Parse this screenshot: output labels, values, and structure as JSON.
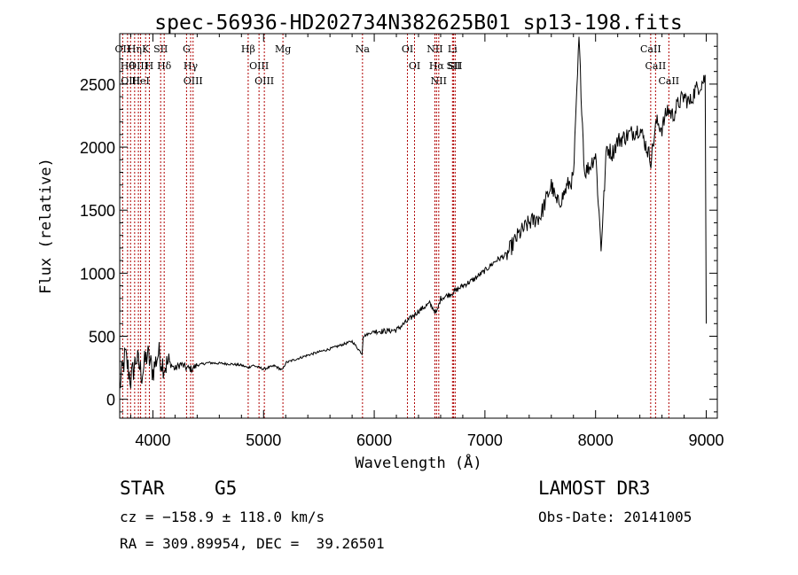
{
  "chart_data": {
    "type": "line",
    "title": "spec-56936-HD202734N382625B01_sp13-198.fits",
    "xlabel": "Wavelength (Å)",
    "ylabel": "Flux (relative)",
    "xlim": [
      3700,
      9100
    ],
    "ylim": [
      -150,
      2900
    ],
    "xticks": [
      4000,
      5000,
      6000,
      7000,
      8000,
      9000
    ],
    "yticks": [
      0,
      500,
      1000,
      1500,
      2000,
      2500
    ],
    "series": [
      {
        "name": "spectrum",
        "x": [
          3700,
          3750,
          3800,
          3850,
          3900,
          3950,
          4000,
          4050,
          4100,
          4150,
          4200,
          4250,
          4300,
          4350,
          4400,
          4500,
          4600,
          4700,
          4800,
          4860,
          4900,
          5000,
          5100,
          5170,
          5200,
          5300,
          5400,
          5500,
          5600,
          5700,
          5800,
          5890,
          5900,
          6000,
          6100,
          6200,
          6300,
          6400,
          6500,
          6563,
          6600,
          6700,
          6800,
          6900,
          7000,
          7100,
          7200,
          7300,
          7400,
          7500,
          7600,
          7650,
          7700,
          7750,
          7800,
          7850,
          7900,
          7950,
          8000,
          8050,
          8100,
          8150,
          8200,
          8300,
          8400,
          8500,
          8550,
          8600,
          8650,
          8700,
          8750,
          8800,
          8850,
          8900,
          8950,
          8990,
          9000
        ],
        "values": [
          100,
          350,
          150,
          330,
          200,
          360,
          220,
          370,
          260,
          290,
          240,
          280,
          250,
          240,
          270,
          290,
          285,
          280,
          270,
          250,
          270,
          240,
          265,
          230,
          290,
          320,
          350,
          375,
          400,
          430,
          460,
          360,
          500,
          540,
          540,
          550,
          620,
          700,
          760,
          680,
          800,
          840,
          900,
          950,
          1020,
          1100,
          1150,
          1300,
          1400,
          1450,
          1700,
          1550,
          1600,
          1700,
          1750,
          2850,
          1800,
          1850,
          1950,
          1200,
          2000,
          1950,
          2050,
          2100,
          2150,
          1900,
          2200,
          2150,
          2300,
          2250,
          2350,
          2400,
          2350,
          2450,
          2500,
          2550,
          600
        ]
      }
    ],
    "line_marks": [
      {
        "wl": 3727,
        "label": "OII"
      },
      {
        "wl": 3771,
        "label": "Hθ"
      },
      {
        "wl": 3798,
        "label": "OIII"
      },
      {
        "wl": 3835,
        "label": "Hη"
      },
      {
        "wl": 3869,
        "label": "OIII"
      },
      {
        "wl": 3889,
        "label": "HeI"
      },
      {
        "wl": 3934,
        "label": "K"
      },
      {
        "wl": 3968,
        "label": "H"
      },
      {
        "wl": 4070,
        "label": "SII"
      },
      {
        "wl": 4102,
        "label": "Hδ"
      },
      {
        "wl": 4304,
        "label": "G"
      },
      {
        "wl": 4341,
        "label": "Hγ"
      },
      {
        "wl": 4363,
        "label": "OIII"
      },
      {
        "wl": 4861,
        "label": "Hβ"
      },
      {
        "wl": 4959,
        "label": "OIII"
      },
      {
        "wl": 5007,
        "label": "OIII"
      },
      {
        "wl": 5175,
        "label": "Mg"
      },
      {
        "wl": 5894,
        "label": "Na"
      },
      {
        "wl": 6300,
        "label": "OI"
      },
      {
        "wl": 6364,
        "label": "OI"
      },
      {
        "wl": 6548,
        "label": "NII"
      },
      {
        "wl": 6563,
        "label": "Hα"
      },
      {
        "wl": 6583,
        "label": "NII"
      },
      {
        "wl": 6707,
        "label": "Li"
      },
      {
        "wl": 6717,
        "label": "SII"
      },
      {
        "wl": 6731,
        "label": "SII"
      },
      {
        "wl": 8498,
        "label": "CaII"
      },
      {
        "wl": 8542,
        "label": "CaII"
      },
      {
        "wl": 8662,
        "label": "CaII"
      }
    ]
  },
  "info": {
    "object_class": "STAR",
    "subclass": "G5",
    "survey": "LAMOST DR3",
    "redshift": "cz = −158.9 ± 118.0 km/s",
    "obs_date": "Obs-Date: 20141005",
    "coords": "RA = 309.89954, DEC =  39.26501"
  }
}
